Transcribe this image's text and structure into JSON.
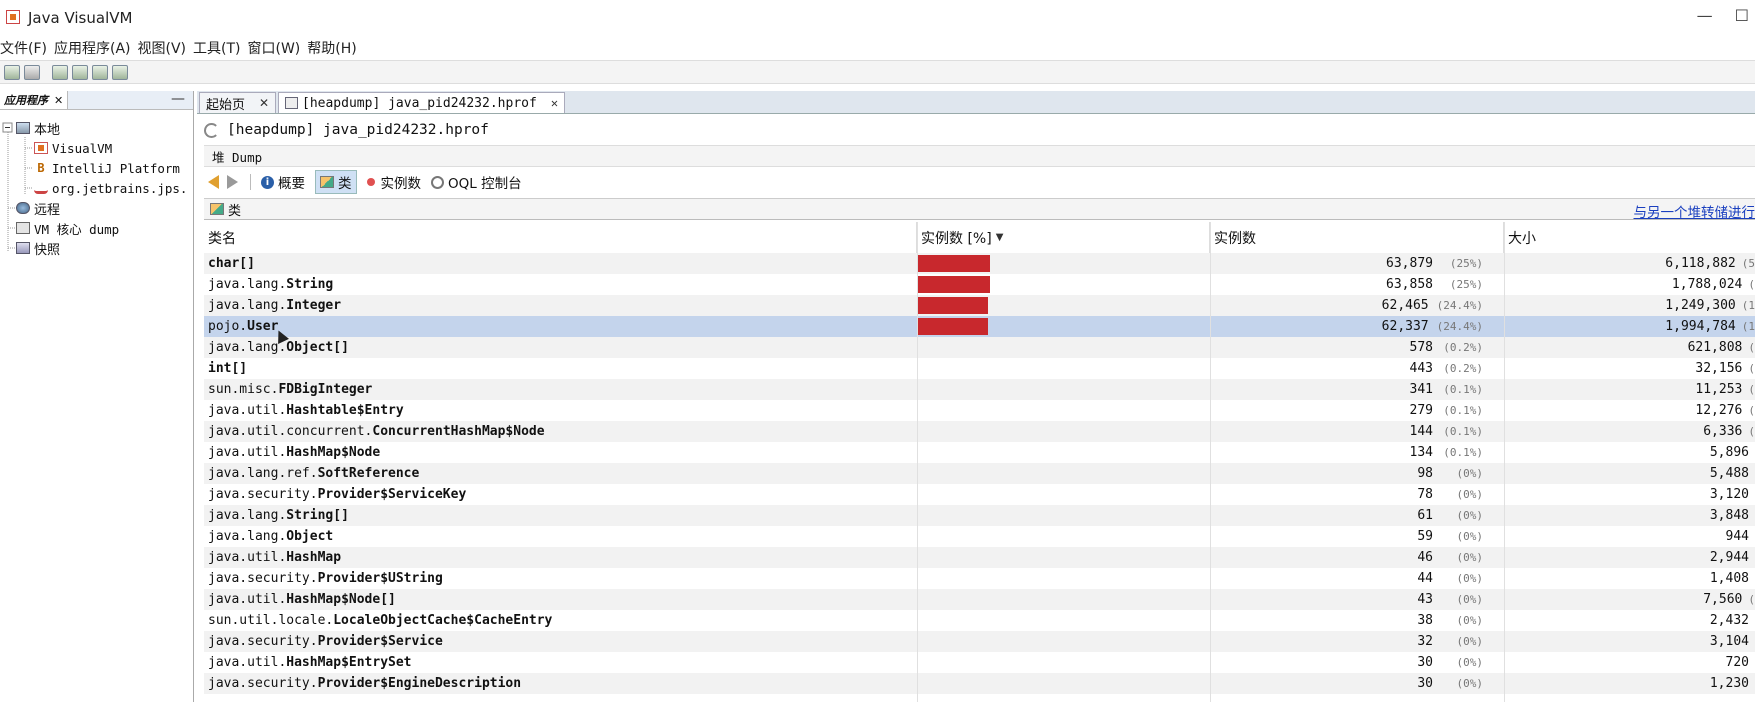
{
  "window": {
    "title": "Java VisualVM",
    "controls": [
      "—",
      "☐"
    ]
  },
  "menu": [
    "文件(F)",
    "应用程序(A)",
    "视图(V)",
    "工具(T)",
    "窗口(W)",
    "帮助(H)"
  ],
  "toolbar_buttons": [
    "open-snapshot-icon",
    "save-icon",
    "add-jmx-icon",
    "add-remote-host-icon",
    "add-core-dump-icon",
    "add-snapshot-icon"
  ],
  "left_panel": {
    "tab_label": "应用程序",
    "tab_close": "✕",
    "minimize": "—",
    "tree": {
      "local": "本地",
      "local_children": [
        "VisualVM",
        "IntelliJ Platform",
        "org.jetbrains.jps."
      ],
      "remote": "远程",
      "vm_core_dump": "VM 核心 dump",
      "snapshots": "快照"
    }
  },
  "doc_tabs": [
    {
      "label": "起始页",
      "close": "✕"
    },
    {
      "label": "[heapdump] java_pid24232.hprof",
      "close": "✕"
    }
  ],
  "dump_title": "[heapdump] java_pid24232.hprof",
  "heap_label": "堆 Dump",
  "nav": {
    "summary": "概要",
    "classes": "类",
    "instances": "实例数",
    "oql": "OQL 控制台"
  },
  "classes_panel": {
    "title": "类",
    "compare_link": "与另一个堆转储进行"
  },
  "table": {
    "columns": [
      "类名",
      "实例数 [%]",
      "实例数",
      "大小"
    ],
    "sort_indicator": "▼",
    "rows": [
      {
        "pkg": "",
        "cls": "char[]",
        "bar": 0.25,
        "count": "63,879",
        "pct": "(25%)",
        "size": "6,118,882",
        "size_pct": "(5"
      },
      {
        "pkg": "java.lang.",
        "cls": "String",
        "bar": 0.25,
        "count": "63,858",
        "pct": "(25%)",
        "size": "1,788,024",
        "size_pct": "("
      },
      {
        "pkg": "java.lang.",
        "cls": "Integer",
        "bar": 0.244,
        "count": "62,465",
        "pct": "(24.4%)",
        "size": "1,249,300",
        "size_pct": "(1"
      },
      {
        "pkg": "pojo.",
        "cls": "User",
        "bar": 0.244,
        "count": "62,337",
        "pct": "(24.4%)",
        "size": "1,994,784",
        "size_pct": "(1"
      },
      {
        "pkg": "java.lang.",
        "cls": "Object[]",
        "bar": 0.002,
        "count": "578",
        "pct": "(0.2%)",
        "size": "621,808",
        "size_pct": "("
      },
      {
        "pkg": "",
        "cls": "int[]",
        "bar": 0.002,
        "count": "443",
        "pct": "(0.2%)",
        "size": "32,156",
        "size_pct": "("
      },
      {
        "pkg": "sun.misc.",
        "cls": "FDBigInteger",
        "bar": 0,
        "count": "341",
        "pct": "(0.1%)",
        "size": "11,253",
        "size_pct": "("
      },
      {
        "pkg": "java.util.",
        "cls": "Hashtable$Entry",
        "bar": 0,
        "count": "279",
        "pct": "(0.1%)",
        "size": "12,276",
        "size_pct": "("
      },
      {
        "pkg": "java.util.concurrent.",
        "cls": "ConcurrentHashMap$Node",
        "bar": 0,
        "count": "144",
        "pct": "(0.1%)",
        "size": "6,336",
        "size_pct": "("
      },
      {
        "pkg": "java.util.",
        "cls": "HashMap$Node",
        "bar": 0,
        "count": "134",
        "pct": "(0.1%)",
        "size": "5,896",
        "size_pct": ""
      },
      {
        "pkg": "java.lang.ref.",
        "cls": "SoftReference",
        "bar": 0,
        "count": "98",
        "pct": "(0%)",
        "size": "5,488",
        "size_pct": ""
      },
      {
        "pkg": "java.security.",
        "cls": "Provider$ServiceKey",
        "bar": 0,
        "count": "78",
        "pct": "(0%)",
        "size": "3,120",
        "size_pct": ""
      },
      {
        "pkg": "java.lang.",
        "cls": "String[]",
        "bar": 0,
        "count": "61",
        "pct": "(0%)",
        "size": "3,848",
        "size_pct": ""
      },
      {
        "pkg": "java.lang.",
        "cls": "Object",
        "bar": 0,
        "count": "59",
        "pct": "(0%)",
        "size": "944",
        "size_pct": ""
      },
      {
        "pkg": "java.util.",
        "cls": "HashMap",
        "bar": 0,
        "count": "46",
        "pct": "(0%)",
        "size": "2,944",
        "size_pct": ""
      },
      {
        "pkg": "java.security.",
        "cls": "Provider$UString",
        "bar": 0,
        "count": "44",
        "pct": "(0%)",
        "size": "1,408",
        "size_pct": ""
      },
      {
        "pkg": "java.util.",
        "cls": "HashMap$Node[]",
        "bar": 0,
        "count": "43",
        "pct": "(0%)",
        "size": "7,560",
        "size_pct": "("
      },
      {
        "pkg": "sun.util.locale.",
        "cls": "LocaleObjectCache$CacheEntry",
        "bar": 0,
        "count": "38",
        "pct": "(0%)",
        "size": "2,432",
        "size_pct": ""
      },
      {
        "pkg": "java.security.",
        "cls": "Provider$Service",
        "bar": 0,
        "count": "32",
        "pct": "(0%)",
        "size": "3,104",
        "size_pct": ""
      },
      {
        "pkg": "java.util.",
        "cls": "HashMap$EntrySet",
        "bar": 0,
        "count": "30",
        "pct": "(0%)",
        "size": "720",
        "size_pct": ""
      },
      {
        "pkg": "java.security.",
        "cls": "Provider$EngineDescription",
        "bar": 0,
        "count": "30",
        "pct": "(0%)",
        "size": "1,230",
        "size_pct": ""
      }
    ],
    "selected_row": 3
  },
  "colors": {
    "bar": "#c8282d",
    "selected_row": "#c4d4ec",
    "link": "#1a3fbf"
  }
}
